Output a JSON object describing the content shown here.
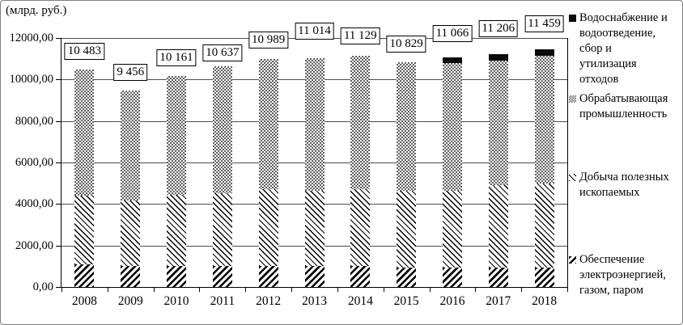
{
  "chart_data": {
    "type": "bar",
    "stacked": true,
    "title": "(млрд. руб.)",
    "categories": [
      "2008",
      "2009",
      "2010",
      "2011",
      "2012",
      "2013",
      "2014",
      "2015",
      "2016",
      "2017",
      "2018"
    ],
    "series": [
      {
        "name": "Обеспечение электроэнергией, газом, паром",
        "pattern": "hatch-forward-bold",
        "values": [
          1100,
          1000,
          1000,
          1000,
          1000,
          1000,
          1000,
          950,
          950,
          950,
          950
        ]
      },
      {
        "name": "Добыча полезных ископаемых",
        "pattern": "hatch-back-thin",
        "values": [
          3290,
          3150,
          3440,
          3520,
          3700,
          3640,
          3720,
          3690,
          3700,
          3950,
          4050
        ]
      },
      {
        "name": "Обрабатывающая промышленность",
        "pattern": "checker-gray",
        "values": [
          6093,
          5306,
          5721,
          6117,
          6289,
          6374,
          6409,
          6189,
          6146,
          6026,
          6159
        ]
      },
      {
        "name": "Водоснабжение и водоотведение, сбор и утилизация отходов",
        "pattern": "solid-black",
        "values": [
          0,
          0,
          0,
          0,
          0,
          0,
          0,
          0,
          270,
          280,
          300
        ]
      }
    ],
    "totals": [
      10483,
      9456,
      10161,
      10637,
      10989,
      11014,
      11129,
      10829,
      11066,
      11206,
      11459
    ],
    "total_labels": [
      "10 483",
      "9 456",
      "10 161",
      "10 637",
      "10 989",
      "11 014",
      "11 129",
      "10 829",
      "11 066",
      "11 206",
      "11 459"
    ],
    "y_axis": {
      "ticks": [
        "0,00",
        "2000,00",
        "4000,00",
        "6000,00",
        "8000,00",
        "10000,00",
        "12000,00"
      ],
      "values": [
        0,
        2000,
        4000,
        6000,
        8000,
        10000,
        12000
      ],
      "max": 12000
    },
    "ylim": [
      0,
      12000
    ],
    "grid": true,
    "legend_position": "right",
    "legend": [
      {
        "pattern": "solid-black",
        "lines": [
          "Водоснабжение и",
          "водоотведение,",
          "сбор и",
          "утилизация",
          "отходов"
        ]
      },
      {
        "pattern": "checker-gray",
        "lines": [
          "Обрабатывающая",
          "промышленность"
        ]
      },
      {
        "pattern": "hatch-back-thin",
        "lines": [
          "Добыча полезных",
          "ископаемых"
        ]
      },
      {
        "pattern": "hatch-forward-bold",
        "lines": [
          "Обеспечение",
          "электроэнергией,",
          "газом, паром"
        ]
      }
    ],
    "colors": {
      "ink": "#000000",
      "grid": "#4d4d4d",
      "checker_gray": "#5f5f5f",
      "frame_border": "#7f7f7f",
      "background": "#ffffff"
    }
  }
}
